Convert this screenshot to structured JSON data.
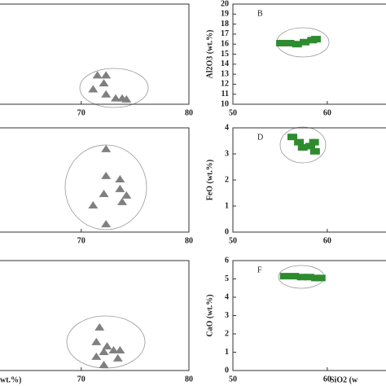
{
  "chart_data": [
    {
      "type": "scatter",
      "marker": "triangle",
      "color": "#808080",
      "xlim": [
        62,
        80
      ],
      "ylim": [
        10,
        20
      ],
      "xticks": [
        70,
        80
      ],
      "x": [
        71.5,
        72.3,
        72.1,
        71.1,
        72.3,
        73.2,
        73.8,
        74.2
      ],
      "values": [
        12.9,
        12.9,
        12.1,
        11.5,
        11.0,
        10.6,
        10.6,
        10.5
      ]
    },
    {
      "type": "scatter",
      "marker": "square",
      "color": "#2e8b2e",
      "panel": "B",
      "ylabel": "Al2O3 (wt.%)",
      "xlim": [
        50,
        67
      ],
      "ylim": [
        10,
        20
      ],
      "xticks": [
        50,
        60
      ],
      "yticks": [
        10,
        11,
        12,
        13,
        14,
        15,
        16,
        17,
        18,
        19,
        20
      ],
      "x": [
        55.1,
        56.0,
        56.8,
        57.6,
        58.4,
        58.8
      ],
      "values": [
        16.1,
        16.1,
        16.0,
        16.2,
        16.4,
        16.5
      ]
    },
    {
      "type": "scatter",
      "marker": "triangle",
      "color": "#808080",
      "xlim": [
        62,
        80
      ],
      "ylim": [
        0,
        4
      ],
      "xticks": [
        70,
        80
      ],
      "x": [
        72.3,
        72.3,
        73.6,
        72.1,
        73.6,
        74.2,
        73.8,
        71.1,
        72.3
      ],
      "values": [
        3.19,
        2.16,
        2.03,
        1.47,
        1.66,
        1.41,
        1.16,
        1.03,
        0.31
      ]
    },
    {
      "type": "scatter",
      "marker": "square",
      "color": "#2e8b2e",
      "panel": "D",
      "ylabel": "FeO (wt.%)",
      "xlim": [
        50,
        67
      ],
      "ylim": [
        0,
        4
      ],
      "xticks": [
        50,
        60
      ],
      "yticks": [
        0,
        1,
        2,
        3,
        4
      ],
      "x": [
        56.3,
        57.0,
        57.4,
        58.2,
        58.6,
        58.7
      ],
      "values": [
        3.65,
        3.45,
        3.25,
        3.3,
        3.45,
        3.1
      ]
    },
    {
      "type": "scatter",
      "marker": "triangle",
      "color": "#808080",
      "xlabel": "wt.%)",
      "xlim": [
        62,
        80
      ],
      "ylim": [
        0,
        6
      ],
      "xticks": [
        70,
        80
      ],
      "x": [
        71.7,
        71.4,
        72.4,
        73.0,
        71.4,
        72.1,
        73.6,
        73.4,
        72.1
      ],
      "values": [
        2.36,
        1.56,
        1.33,
        1.11,
        0.76,
        1.02,
        1.11,
        0.67,
        0.31
      ]
    },
    {
      "type": "scatter",
      "marker": "square",
      "color": "#2e8b2e",
      "panel": "F",
      "ylabel": "CaO (wt.%)",
      "xlabel": "SiO2 (w",
      "xlim": [
        50,
        67
      ],
      "ylim": [
        0,
        6
      ],
      "xticks": [
        50,
        60
      ],
      "yticks": [
        0,
        1,
        2,
        3,
        4,
        5,
        6
      ],
      "x": [
        55.5,
        56.5,
        57.3,
        58.1,
        58.8,
        59.3
      ],
      "values": [
        5.15,
        5.15,
        5.1,
        5.1,
        5.05,
        5.05
      ]
    }
  ]
}
